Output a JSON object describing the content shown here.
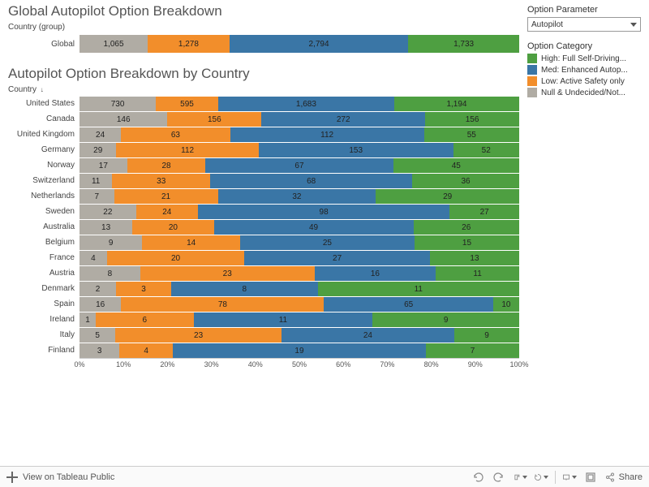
{
  "sidebar": {
    "param_label": "Option Parameter",
    "param_value": "Autopilot",
    "legend_label": "Option Category",
    "legend": [
      {
        "label": "High: Full Self-Driving...",
        "color": "#4e9f41"
      },
      {
        "label": "Med: Enhanced Autop...",
        "color": "#3a76a6"
      },
      {
        "label": "Low: Active Safety only",
        "color": "#f28e2b"
      },
      {
        "label": "Null & Undecided/Not...",
        "color": "#b0aca4"
      }
    ]
  },
  "colors": {
    "null": "#b0aca4",
    "low": "#f28e2b",
    "med": "#3a76a6",
    "high": "#4e9f41"
  },
  "global": {
    "title": "Global Autopilot Option Breakdown",
    "axis_label": "Country (group)",
    "row_label": "Global",
    "segments": [
      {
        "key": "null",
        "value": 1065
      },
      {
        "key": "low",
        "value": 1278
      },
      {
        "key": "med",
        "value": 2794
      },
      {
        "key": "high",
        "value": 1733
      }
    ]
  },
  "by_country": {
    "title": "Autopilot Option Breakdown by Country",
    "axis_label": "Country",
    "sort_indicator": "↓",
    "x_ticks": [
      "0%",
      "10%",
      "20%",
      "30%",
      "40%",
      "50%",
      "60%",
      "70%",
      "80%",
      "90%",
      "100%"
    ],
    "rows": [
      {
        "label": "United States",
        "null": 730,
        "low": 595,
        "med": 1683,
        "high": 1194
      },
      {
        "label": "Canada",
        "null": 146,
        "low": 156,
        "med": 272,
        "high": 156
      },
      {
        "label": "United Kingdom",
        "null": 24,
        "low": 63,
        "med": 112,
        "high": 55
      },
      {
        "label": "Germany",
        "null": 29,
        "low": 112,
        "med": 153,
        "high": 52
      },
      {
        "label": "Norway",
        "null": 17,
        "low": 28,
        "med": 67,
        "high": 45
      },
      {
        "label": "Switzerland",
        "null": 11,
        "low": 33,
        "med": 68,
        "high": 36
      },
      {
        "label": "Netherlands",
        "null": 7,
        "low": 21,
        "med": 32,
        "high": 29
      },
      {
        "label": "Sweden",
        "null": 22,
        "low": 24,
        "med": 98,
        "high": 27
      },
      {
        "label": "Australia",
        "null": 13,
        "low": 20,
        "med": 49,
        "high": 26
      },
      {
        "label": "Belgium",
        "null": 9,
        "low": 14,
        "med": 25,
        "high": 15
      },
      {
        "label": "France",
        "null": 4,
        "low": 20,
        "med": 27,
        "high": 13
      },
      {
        "label": "Austria",
        "null": 8,
        "low": 23,
        "med": 16,
        "high": 11
      },
      {
        "label": "Denmark",
        "null": 2,
        "low": 3,
        "med": 8,
        "high": 11
      },
      {
        "label": "Spain",
        "null": 16,
        "low": 78,
        "med": 65,
        "high": 10
      },
      {
        "label": "Ireland",
        "null": 1,
        "low": 6,
        "med": 11,
        "high": 9
      },
      {
        "label": "Italy",
        "null": 5,
        "low": 23,
        "med": 24,
        "high": 9
      },
      {
        "label": "Finland",
        "null": 3,
        "low": 4,
        "med": 19,
        "high": 7
      }
    ]
  },
  "toolbar": {
    "view_label": "View on Tableau Public",
    "share_label": "Share"
  }
}
